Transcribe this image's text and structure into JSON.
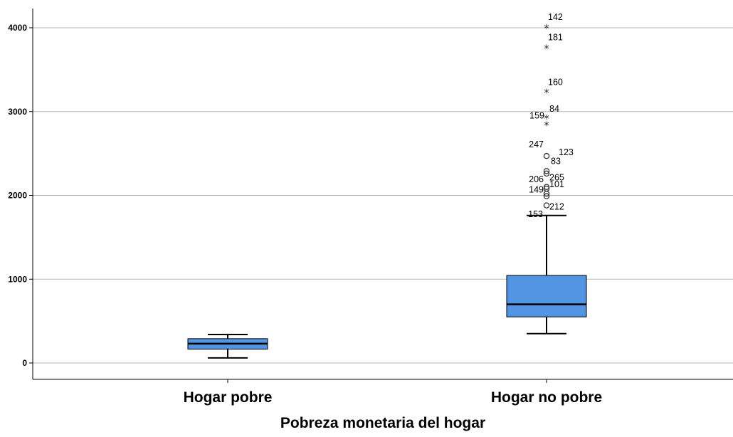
{
  "chart_data": {
    "type": "boxplot",
    "title": "",
    "xlabel": "Pobreza monetaria del hogar",
    "ylabel": "",
    "ylim": [
      -220,
      4290
    ],
    "yticks": [
      0,
      1000,
      2000,
      3000,
      4000
    ],
    "ytick_labels": [
      "0",
      "1000",
      "2000",
      "3000",
      "4000"
    ],
    "grid": true,
    "box_color": "#5294e2",
    "categories": [
      "Hogar pobre",
      "Hogar no pobre"
    ],
    "boxes": [
      {
        "category": "Hogar pobre",
        "whisker_low": 60,
        "q1": 165,
        "median": 230,
        "q3": 290,
        "whisker_high": 340,
        "outliers": []
      },
      {
        "category": "Hogar no pobre",
        "whisker_low": 350,
        "q1": 550,
        "median": 700,
        "q3": 1045,
        "whisker_high": 1760,
        "outliers": [
          {
            "id": "153",
            "value": 1760,
            "marker": "none"
          },
          {
            "id": "212",
            "value": 1880,
            "marker": "circle"
          },
          {
            "id": "149",
            "value": 1990,
            "marker": "circle"
          },
          {
            "id": "101",
            "value": 2020,
            "marker": "circle"
          },
          {
            "id": "206",
            "value": 2080,
            "marker": "circle"
          },
          {
            "id": "265",
            "value": 2100,
            "marker": "circle"
          },
          {
            "id": "123",
            "value": 2260,
            "marker": "circle"
          },
          {
            "id": "83",
            "value": 2290,
            "marker": "circle"
          },
          {
            "id": "247",
            "value": 2470,
            "marker": "circle"
          },
          {
            "id": "159",
            "value": 2840,
            "marker": "star"
          },
          {
            "id": "84",
            "value": 2920,
            "marker": "star"
          },
          {
            "id": "160",
            "value": 3230,
            "marker": "star"
          },
          {
            "id": "181",
            "value": 3760,
            "marker": "star"
          },
          {
            "id": "142",
            "value": 4000,
            "marker": "star"
          }
        ]
      }
    ]
  }
}
